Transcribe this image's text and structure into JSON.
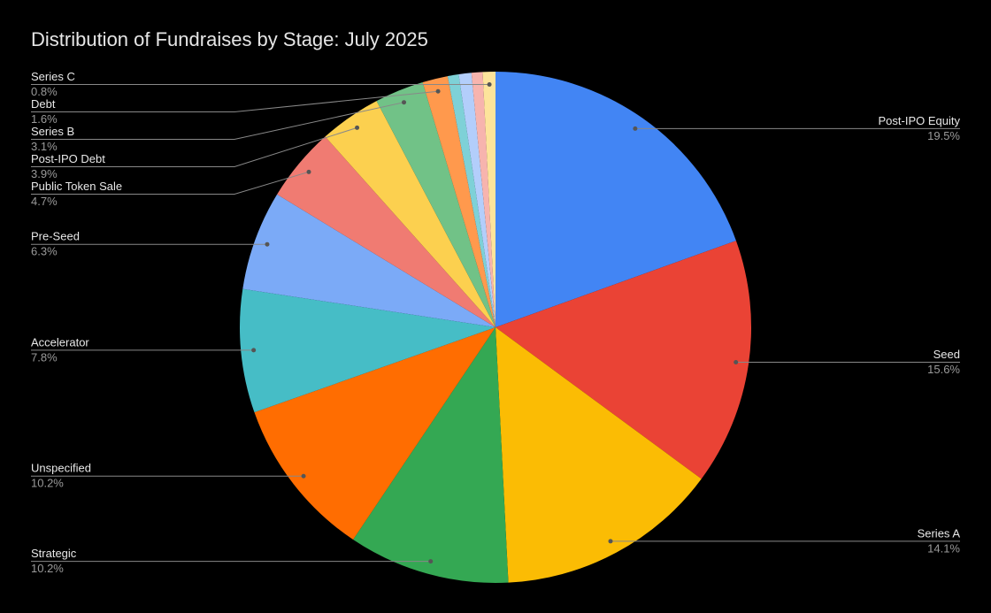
{
  "chart_data": {
    "type": "pie",
    "title": "Distribution of Fundraises by Stage: July 2025",
    "categories": [
      "Post-IPO Equity",
      "Seed",
      "Series A",
      "Strategic",
      "Unspecified",
      "Accelerator",
      "Pre-Seed",
      "Public Token Sale",
      "Post-IPO Debt",
      "Series B",
      "Debt",
      null,
      null,
      null,
      "Series C"
    ],
    "values": [
      19.5,
      15.6,
      14.1,
      10.2,
      10.2,
      7.8,
      6.3,
      4.7,
      3.9,
      3.1,
      1.6,
      0.7,
      0.8,
      0.7,
      0.8
    ],
    "value_labels": [
      "19.5%",
      "15.6%",
      "14.1%",
      "10.2%",
      "10.2%",
      "7.8%",
      "6.3%",
      "4.7%",
      "3.9%",
      "3.1%",
      "1.6%",
      null,
      null,
      null,
      "0.8%"
    ],
    "colors": [
      "#4285f4",
      "#ea4335",
      "#fbbc04",
      "#34a853",
      "#ff6d01",
      "#46bdc6",
      "#7baaf7",
      "#f07b72",
      "#fcd04f",
      "#71c287",
      "#ff994d",
      "#7ed1d7",
      "#b3cefb",
      "#f7b4ae",
      "#fde49b"
    ]
  }
}
